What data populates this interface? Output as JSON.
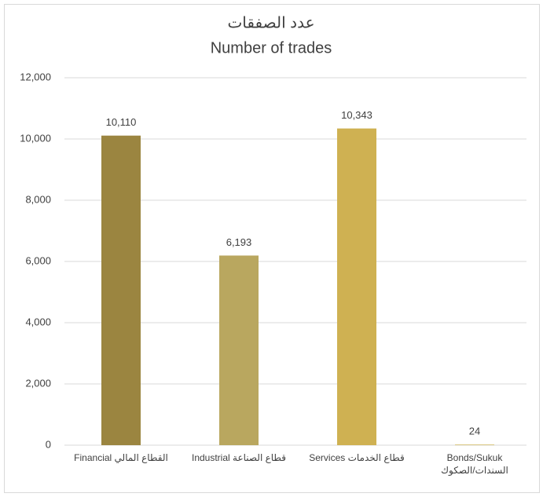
{
  "chart_data": {
    "type": "bar",
    "title": [
      "عدد الصفقات",
      "Number of trades"
    ],
    "categories": [
      [
        "Financial القطاع المالي"
      ],
      [
        "Industrial قطاع الصناعة"
      ],
      [
        "Services قطاع الخدمات"
      ],
      [
        "Bonds/Sukuk",
        "السندات/الصكوك"
      ]
    ],
    "values": [
      10110,
      6193,
      10343,
      24
    ],
    "value_labels": [
      "10,110",
      "6,193",
      "10,343",
      "24"
    ],
    "colors": [
      "#9b8540",
      "#b9a75f",
      "#cfb152",
      "#d9c47a"
    ],
    "ylim": [
      0,
      12000
    ],
    "yticks": [
      0,
      {
        "value": 2000,
        "label": "2,000"
      },
      {
        "value": 4000,
        "label": "4,000"
      },
      {
        "value": 6000,
        "label": "6,000"
      },
      {
        "value": 8000,
        "label": "8,000"
      },
      {
        "value": 10000,
        "label": "10,000"
      },
      {
        "value": 12000,
        "label": "12,000"
      }
    ],
    "grid": true
  }
}
